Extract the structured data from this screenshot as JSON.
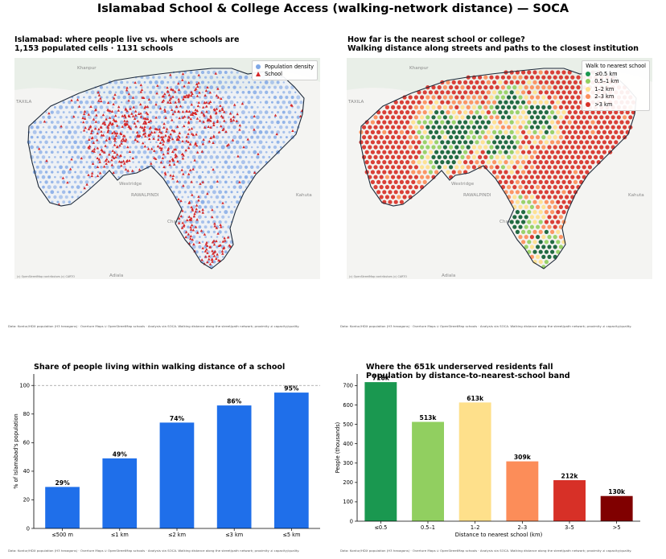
{
  "suptitle": "Islamabad School & College Access (walking-network distance) — SOCA",
  "credit": "Data: Kontur/HDX population (H3 hexagons) · Overture Maps ∪ OpenStreetMap schools · Analysis via SOCA. Walking distance along the street/path network; proximity ≠ capacity/quality.",
  "map_attribution": "(c) OpenStreetMap contributors (c) CARTO",
  "colors": {
    "boundary": "#1e2a3a",
    "population": "#7fa7e6",
    "school": "#d62728",
    "band_colors": [
      "#1a9850",
      "#91cf60",
      "#fee08b",
      "#fc8d59",
      "#d73027",
      "#800000"
    ]
  },
  "place_labels": [
    "Khanpur",
    "TAXILA",
    "Westridge",
    "RAWALPINDI",
    "Kahuta",
    "Adiala",
    "Chakri Road"
  ],
  "panel1": {
    "title": "Islamabad: where people live vs. where schools are\n1,153 populated cells · 1131 schools",
    "legend": {
      "population": "Population density",
      "school": "School"
    }
  },
  "panel2": {
    "title": "How far is the nearest school or college?\nWalking distance along streets and paths to the closest institution",
    "legend_title": "Walk to nearest school",
    "legend_items": [
      "≤0.5 km",
      "0.5–1 km",
      "1–2 km",
      "2–3 km",
      ">3 km"
    ],
    "legend_colors": [
      "#1a9850",
      "#91cf60",
      "#fee08b",
      "#fc8d59",
      "#d73027"
    ]
  },
  "chart_data": [
    {
      "type": "bar",
      "title": "Share of people living within walking distance of a school",
      "xlabel": "",
      "ylabel": "% of Islamabad's population",
      "categories": [
        "≤500 m",
        "≤1 km",
        "≤2 km",
        "≤3 km",
        "≤5 km"
      ],
      "values": [
        29,
        49,
        74,
        86,
        95
      ],
      "data_labels": [
        "29%",
        "49%",
        "74%",
        "86%",
        "95%"
      ],
      "ylim": [
        0,
        108
      ],
      "yticks": [
        0,
        20,
        40,
        60,
        80,
        100
      ],
      "reference_line": 100,
      "bar_color": "#1f6fea"
    },
    {
      "type": "bar",
      "title": "Where the 651k underserved residents fall\nPopulation by distance-to-nearest-school band",
      "xlabel": "Distance to nearest school (km)",
      "ylabel": "People (thousands)",
      "categories": [
        "≤0.5",
        "0.5–1",
        "1–2",
        "2–3",
        "3–5",
        ">5"
      ],
      "values": [
        718,
        513,
        613,
        309,
        212,
        130
      ],
      "data_labels": [
        "718k",
        "513k",
        "613k",
        "309k",
        "212k",
        "130k"
      ],
      "ylim": [
        0,
        760
      ],
      "yticks": [
        0,
        100,
        200,
        300,
        400,
        500,
        600,
        700
      ],
      "bar_colors": [
        "#1a9850",
        "#91cf60",
        "#fee08b",
        "#fc8d59",
        "#d73027",
        "#800000"
      ]
    }
  ]
}
